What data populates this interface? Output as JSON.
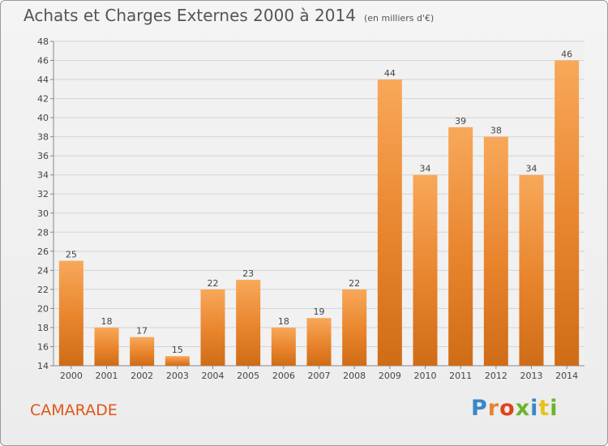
{
  "chart_data": {
    "type": "bar",
    "title": "Achats et Charges Externes 2000 à 2014",
    "subtitle": "(en milliers d'€)",
    "categories": [
      "2000",
      "2001",
      "2002",
      "2003",
      "2004",
      "2005",
      "2006",
      "2007",
      "2008",
      "2009",
      "2010",
      "2011",
      "2012",
      "2013",
      "2014"
    ],
    "values": [
      25,
      18,
      17,
      15,
      22,
      23,
      18,
      19,
      22,
      44,
      34,
      39,
      38,
      34,
      46
    ],
    "ylim": [
      14,
      48
    ],
    "yticks": [
      14,
      16,
      18,
      20,
      22,
      24,
      26,
      28,
      30,
      32,
      34,
      36,
      38,
      40,
      42,
      44,
      46,
      48
    ],
    "grid": true,
    "bar_color": "#e8842c",
    "bar_color_light": "#f8a85a",
    "bar_color_dark": "#cf6c16"
  },
  "footer": {
    "commune": "CAMARADE",
    "commune_color": "#e0561b",
    "logo": "Proxiti",
    "logo_colors": [
      "#3a86c8",
      "#e8842c",
      "#e0431b",
      "#6bb42a",
      "#3a86c8",
      "#e8c21b",
      "#6bb42a"
    ]
  }
}
